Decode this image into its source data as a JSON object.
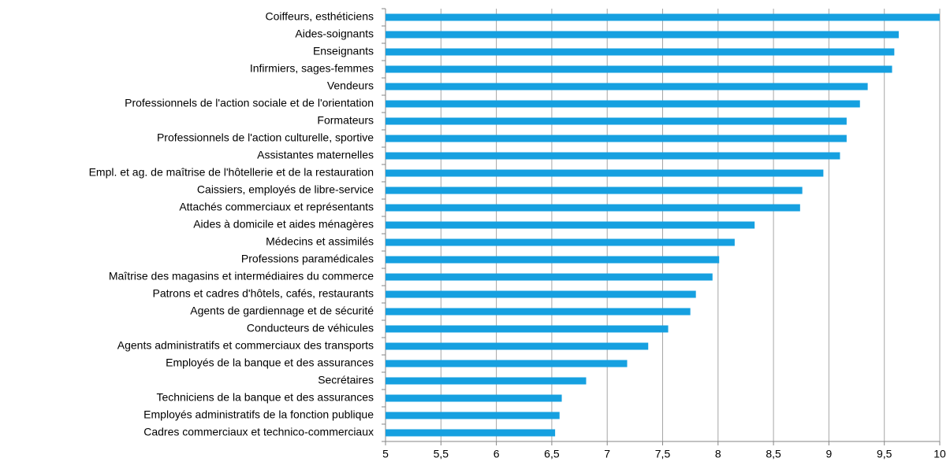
{
  "chart_data": {
    "type": "barh",
    "categories": [
      "Coiffeurs, esthéticiens",
      "Aides-soignants",
      "Enseignants",
      "Infirmiers, sages-femmes",
      "Vendeurs",
      "Professionnels de l'action sociale et de l'orientation",
      "Formateurs",
      "Professionnels de l'action culturelle, sportive",
      "Assistantes maternelles",
      "Empl. et ag. de maîtrise de l'hôtellerie et de la restauration",
      "Caissiers, employés de libre-service",
      "Attachés commerciaux et représentants",
      "Aides à domicile et aides ménagères",
      "Médecins et assimilés",
      "Professions paramédicales",
      "Maîtrise des magasins et intermédiaires du commerce",
      "Patrons et cadres d'hôtels, cafés, restaurants",
      "Agents de gardiennage et de sécurité",
      "Conducteurs de véhicules",
      "Agents administratifs et commerciaux des transports",
      "Employés de la banque et des assurances",
      "Secrétaires",
      "Techniciens de la banque et des assurances",
      "Employés administratifs de la fonction publique",
      "Cadres commerciaux et technico-commerciaux"
    ],
    "values": [
      10.0,
      9.63,
      9.59,
      9.57,
      9.35,
      9.28,
      9.16,
      9.16,
      9.1,
      8.95,
      8.76,
      8.74,
      8.33,
      8.15,
      8.01,
      7.95,
      7.8,
      7.75,
      7.55,
      7.37,
      7.18,
      6.81,
      6.59,
      6.57,
      6.53
    ],
    "color": "#16a0e0",
    "xlim": [
      5,
      10
    ],
    "xticks": [
      5,
      {
        "value": 5.5,
        "label": "5,5"
      },
      6,
      {
        "value": 6.5,
        "label": "6,5"
      },
      7,
      {
        "value": 7.5,
        "label": "7,5"
      },
      8,
      {
        "value": 8.5,
        "label": "8,5"
      },
      9,
      {
        "value": 9.5,
        "label": "9,5"
      },
      10
    ],
    "grid": true
  }
}
